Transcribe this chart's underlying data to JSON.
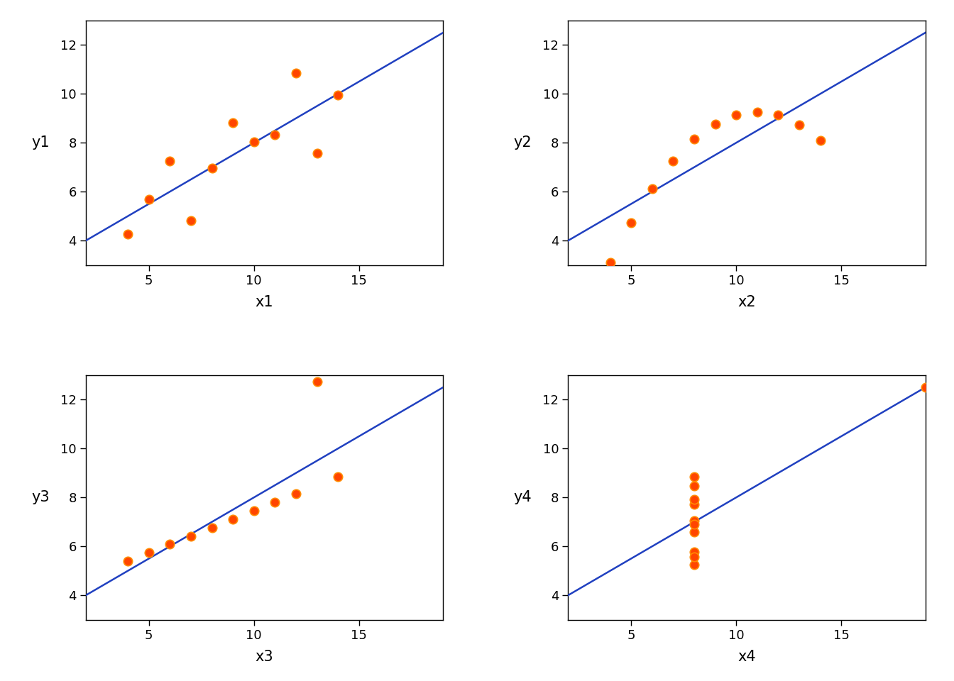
{
  "datasets": [
    {
      "x": [
        10,
        8,
        13,
        9,
        11,
        14,
        6,
        4,
        12,
        7,
        5
      ],
      "y": [
        8.04,
        6.95,
        7.58,
        8.81,
        8.33,
        9.96,
        7.24,
        4.26,
        10.84,
        4.82,
        5.68
      ],
      "xlabel": "x1",
      "ylabel": "y1"
    },
    {
      "x": [
        10,
        8,
        13,
        9,
        11,
        14,
        6,
        4,
        12,
        7,
        5
      ],
      "y": [
        9.14,
        8.14,
        8.74,
        8.77,
        9.26,
        8.1,
        6.13,
        3.1,
        9.13,
        7.26,
        4.74
      ],
      "xlabel": "x2",
      "ylabel": "y2"
    },
    {
      "x": [
        10,
        8,
        13,
        9,
        11,
        14,
        6,
        4,
        12,
        7,
        5
      ],
      "y": [
        7.46,
        6.77,
        12.74,
        7.11,
        7.81,
        8.84,
        6.08,
        5.39,
        8.15,
        6.42,
        5.73
      ],
      "xlabel": "x3",
      "ylabel": "y3"
    },
    {
      "x": [
        8,
        8,
        8,
        8,
        8,
        8,
        8,
        19,
        8,
        8,
        8
      ],
      "y": [
        6.58,
        5.76,
        7.71,
        8.84,
        8.47,
        7.04,
        5.25,
        12.5,
        5.56,
        7.91,
        6.89
      ],
      "xlabel": "x4",
      "ylabel": "y4"
    }
  ],
  "xlim": [
    2,
    19
  ],
  "ylim": [
    3,
    13
  ],
  "xticks": [
    5,
    10,
    15
  ],
  "yticks": [
    4,
    6,
    8,
    10,
    12
  ],
  "line_color": "#2040C0",
  "marker_face_color": "#FF4500",
  "marker_edge_color": "#FF8C00",
  "marker_size": 80,
  "marker_linewidth": 1.2,
  "background_color": "#FFFFFF",
  "line_intercept": 3.0,
  "line_slope": 0.5,
  "xlabel_fontsize": 15,
  "ylabel_fontsize": 15,
  "tick_fontsize": 13,
  "line_width": 1.8
}
